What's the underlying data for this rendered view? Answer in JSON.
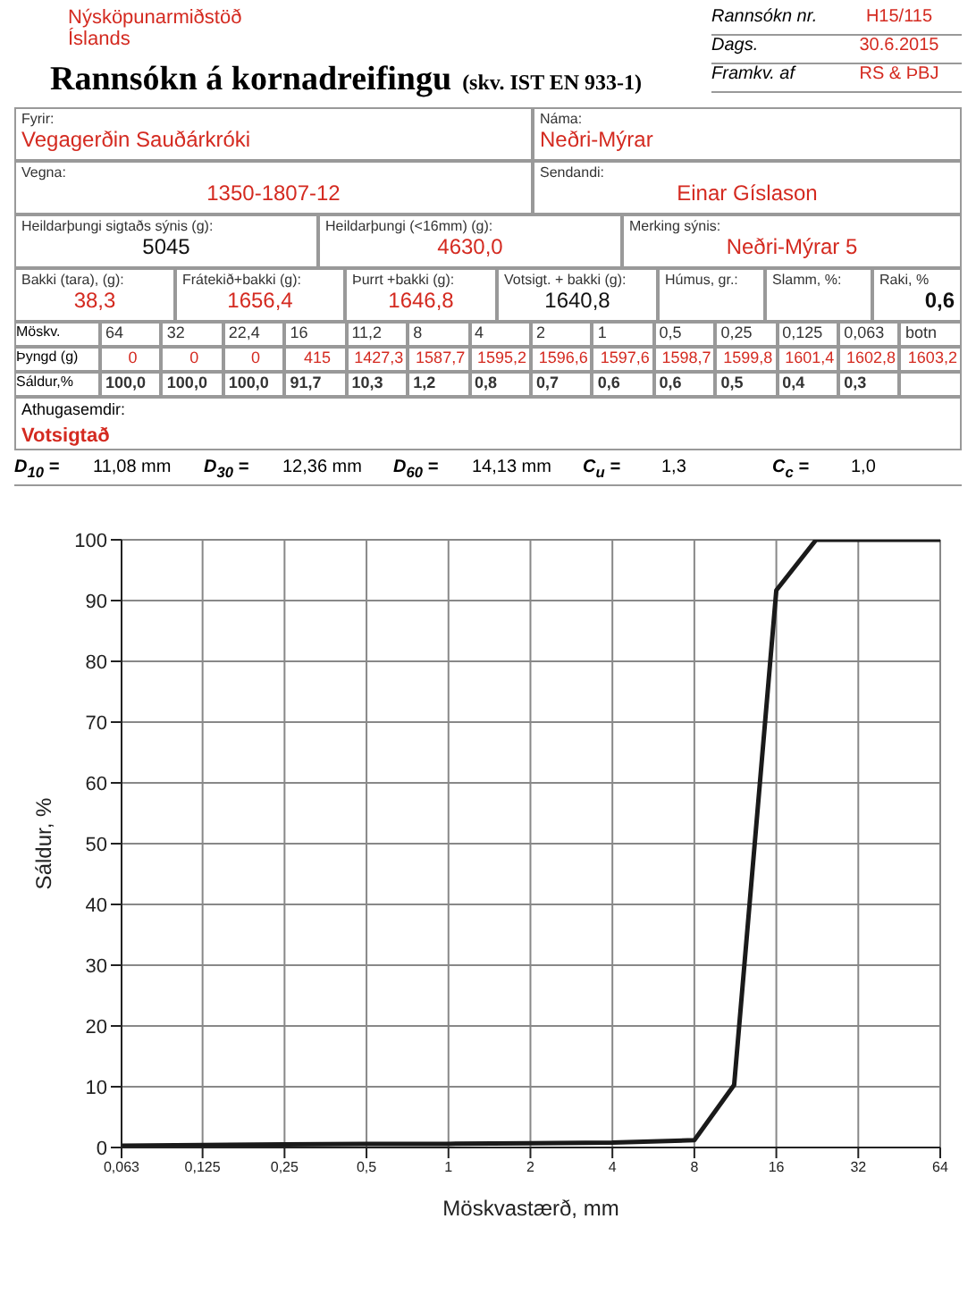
{
  "chart_data": {
    "type": "line",
    "title": "Rannsókn á kornadreifingu",
    "subtitle": "(skv. IST EN 933-1)",
    "xlabel": "Möskvastærð, mm",
    "ylabel": "Sáldur, %",
    "x": [
      0.063,
      0.125,
      0.25,
      0.5,
      1,
      2,
      4,
      8,
      11.2,
      16,
      22.4,
      32,
      64
    ],
    "series": [
      {
        "color": "#1a1a1a",
        "values": [
          0.3,
          0.4,
          0.5,
          0.6,
          0.6,
          0.7,
          0.8,
          1.2,
          10.3,
          91.7,
          100,
          100,
          100
        ]
      }
    ],
    "xlim": [
      0.063,
      64
    ],
    "xticks": [
      {
        "value": 0.063,
        "label": "0,063"
      },
      {
        "value": 0.125,
        "label": "0,125"
      },
      {
        "value": 0.25,
        "label": "0,25"
      },
      {
        "value": 0.5,
        "label": "0,5"
      },
      1,
      2,
      4,
      8,
      16,
      32,
      64
    ],
    "ylim": [
      0,
      100
    ],
    "yticks": [
      0,
      10,
      20,
      30,
      40,
      50,
      60,
      70,
      80,
      90,
      100
    ],
    "log": "x",
    "grid": true,
    "marker": "none",
    "legend": false,
    "annotations": [
      "Nýsköpunarmiðstöð Íslands",
      "Rannsókn nr.",
      "H15/115",
      "Dags.",
      "30.6.2015",
      "Framkv. af",
      "RS & ÞBJ",
      "Fyrir:",
      "Vegagerðin Sauðárkróki",
      "Náma:",
      "Neðri-Mýrar",
      "Vegna:",
      "1350-1807-12",
      "Sendandi:",
      "Einar Gíslason",
      "Heildarþungi sigtaðs sýnis (g):",
      "5045",
      "Heildarþungi (<16mm) (g):",
      "4630,0",
      "Merking sýnis:",
      "Neðri-Mýrar 5",
      "Bakki (tara), (g):",
      "38,3",
      "Frátekið+bakki (g):",
      "1656,4",
      "Þurrt +bakki (g):",
      "1646,8",
      "Votsigt. + bakki (g):",
      "1640,8",
      "Húmus, gr.:",
      "Slamm, %:",
      "Raki, %",
      "0,6",
      "Möskv.",
      "64",
      "32",
      "22,4",
      "16",
      "11,2",
      "8",
      "4",
      "2",
      "1",
      "0,5",
      "0,25",
      "0,125",
      "0,063",
      "botn",
      "Þyngd (g)",
      "0",
      "0",
      "0",
      "415",
      "1427,3",
      "1587,7",
      "1595,2",
      "1596,6",
      "1597,6",
      "1598,7",
      "1599,8",
      "1601,4",
      "1602,8",
      "1603,2",
      "Sáldur,%",
      "Athugasemdir:",
      "Votsigtað",
      "D$_{10}$ =",
      "11,08 mm",
      "D$_{30}$ =",
      "12,36 mm",
      "D$_{60}$ =",
      "14,13 mm",
      "C$_{u}$ =",
      "1,3",
      "C$_{c}$ =",
      "1,0",
      "100,0",
      "100,0",
      "100,0",
      "91,7",
      "10,3",
      "1,2",
      "0,8",
      "0,7",
      "0,6",
      "0,6",
      "0,5",
      "0,4",
      "0,3"
    ]
  }
}
